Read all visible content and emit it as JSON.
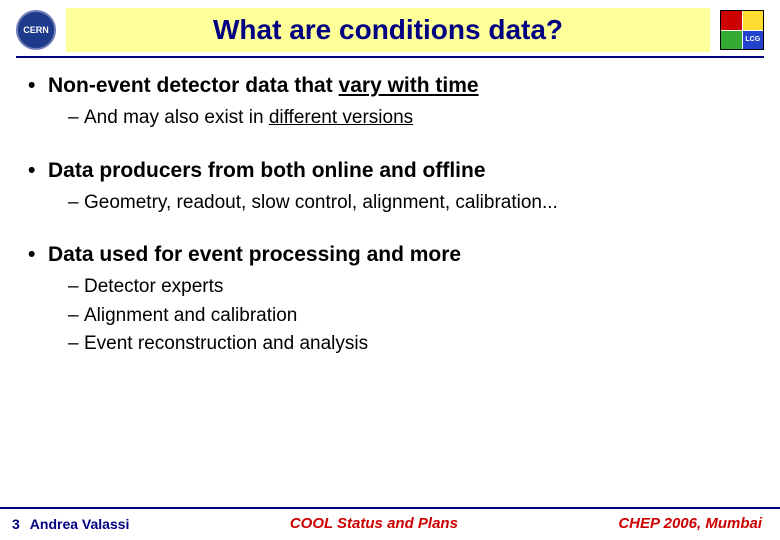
{
  "header": {
    "title": "What are conditions data?",
    "title_color": "#000080",
    "title_bg": "#ffff99",
    "title_fontsize": 28,
    "logo_left_text": "CERN",
    "logo_right_text": "LCG"
  },
  "bullets": [
    {
      "text_prefix": "Non-event detector data that ",
      "text_underlined": "vary with time",
      "sub": [
        {
          "prefix": "And may also exist in ",
          "underlined": "different versions",
          "suffix": ""
        }
      ]
    },
    {
      "text_prefix": "Data producers from both online and offline",
      "text_underlined": "",
      "sub": [
        {
          "prefix": "Geometry, readout, slow control, alignment, calibration...",
          "underlined": "",
          "suffix": ""
        }
      ]
    },
    {
      "text_prefix": "Data used for event processing and more",
      "text_underlined": "",
      "sub": [
        {
          "prefix": "Detector experts",
          "underlined": "",
          "suffix": ""
        },
        {
          "prefix": "Alignment and calibration",
          "underlined": "",
          "suffix": ""
        },
        {
          "prefix": "Event reconstruction and analysis",
          "underlined": "",
          "suffix": ""
        }
      ]
    }
  ],
  "footer": {
    "page_num": "3",
    "author": "Andrea Valassi",
    "center": "COOL Status and Plans",
    "right": "CHEP 2006, Mumbai"
  },
  "colors": {
    "accent": "#000080",
    "footer_red": "#cc0000",
    "background": "#ffffff"
  }
}
